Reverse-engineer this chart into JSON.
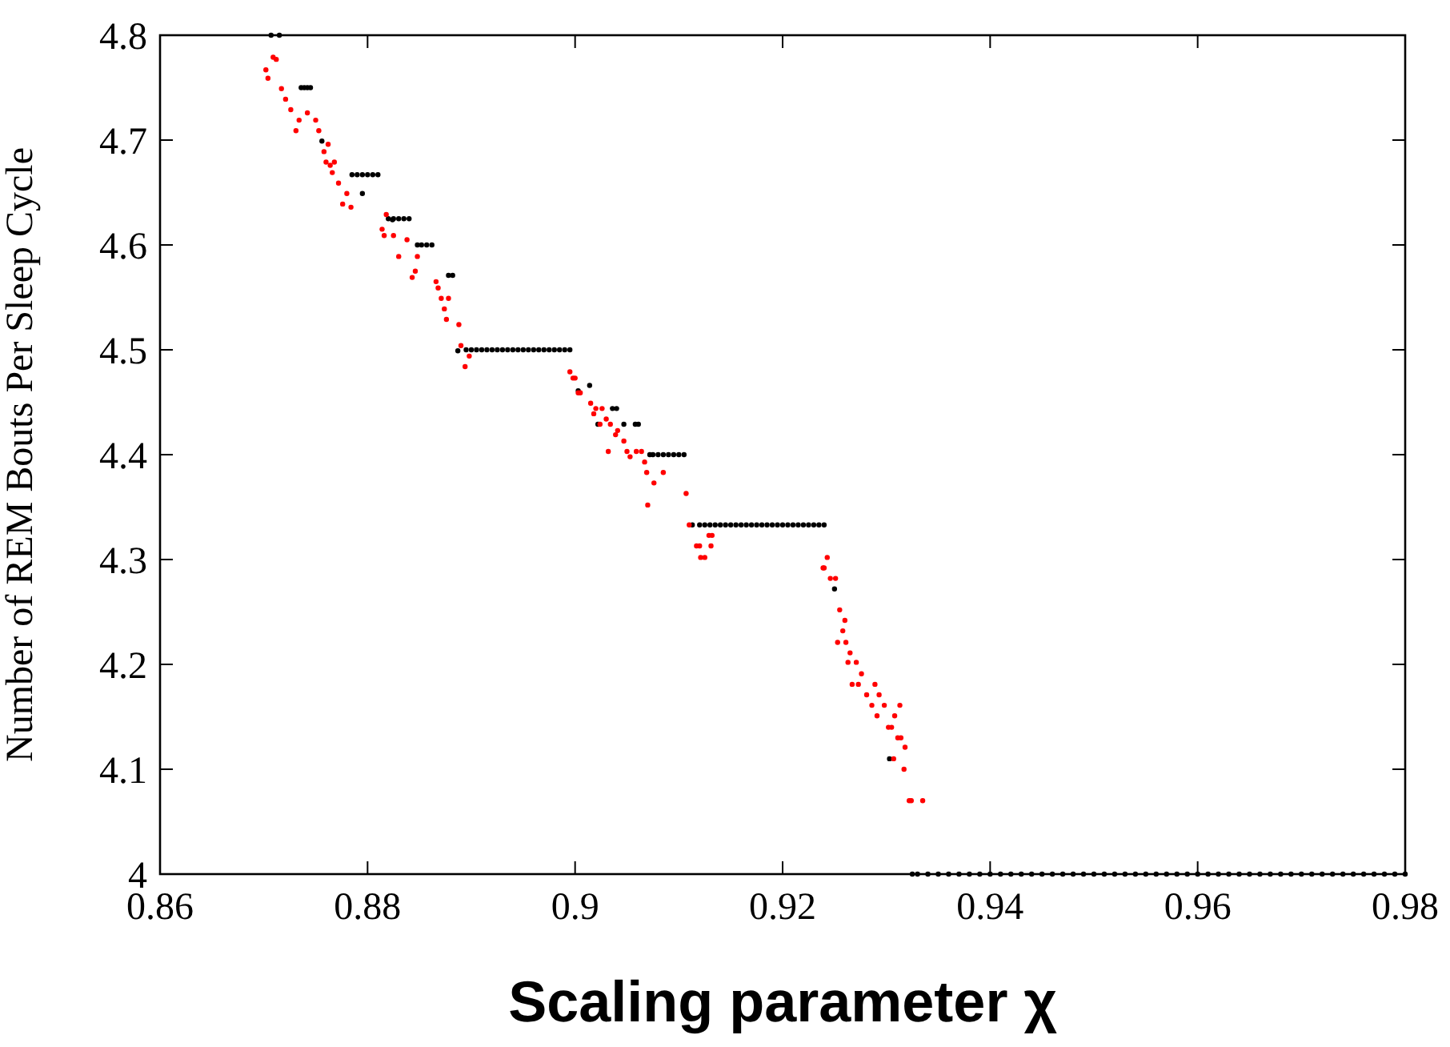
{
  "chart_data": {
    "type": "scatter",
    "xlabel": "Scaling parameter χ",
    "ylabel": "Number of REM Bouts Per Sleep Cycle",
    "xlim": [
      0.86,
      0.98
    ],
    "xticks": [
      0.86,
      0.88,
      0.9,
      0.92,
      0.94,
      0.96,
      0.98
    ],
    "ylim": [
      4,
      4.8
    ],
    "yticks": [
      4,
      4.1,
      4.2,
      4.3,
      4.4,
      4.5,
      4.6,
      4.7,
      4.8
    ],
    "grid": false,
    "series": [
      {
        "color": "#000000",
        "x": [
          0.8707,
          0.8715,
          0.8736,
          0.8739,
          0.8742,
          0.8745,
          0.8785,
          0.879,
          0.8795,
          0.88,
          0.8805,
          0.881,
          0.882,
          0.8825,
          0.883,
          0.8835,
          0.884,
          0.8848,
          0.8852,
          0.8857,
          0.8862,
          0.8878,
          0.8882,
          0.8895,
          0.89,
          0.8905,
          0.891,
          0.8915,
          0.892,
          0.8925,
          0.893,
          0.8935,
          0.894,
          0.8945,
          0.895,
          0.8955,
          0.896,
          0.8965,
          0.897,
          0.8975,
          0.898,
          0.8985,
          0.899,
          0.8995,
          0.8756,
          0.8795,
          0.8824,
          0.8887,
          0.9003,
          0.9014,
          0.9036,
          0.904,
          0.9022,
          0.9047,
          0.9058,
          0.9061,
          0.9072,
          0.9075,
          0.908,
          0.9085,
          0.909,
          0.9095,
          0.91,
          0.9105,
          0.9113,
          0.912,
          0.9125,
          0.913,
          0.9135,
          0.914,
          0.9145,
          0.915,
          0.9155,
          0.916,
          0.9165,
          0.917,
          0.9175,
          0.918,
          0.9185,
          0.919,
          0.9195,
          0.92,
          0.9205,
          0.921,
          0.9215,
          0.922,
          0.9225,
          0.923,
          0.9235,
          0.924,
          0.925,
          0.9303,
          0.9325,
          0.933,
          0.934,
          0.935,
          0.936,
          0.937,
          0.938,
          0.939,
          0.94,
          0.941,
          0.942,
          0.943,
          0.944,
          0.945,
          0.946,
          0.947,
          0.948,
          0.949,
          0.95,
          0.951,
          0.952,
          0.953,
          0.954,
          0.955,
          0.956,
          0.957,
          0.958,
          0.959,
          0.96,
          0.961,
          0.962,
          0.963,
          0.964,
          0.965,
          0.966,
          0.967,
          0.968,
          0.969,
          0.97,
          0.971,
          0.972,
          0.973,
          0.974,
          0.975,
          0.976,
          0.977,
          0.978,
          0.979,
          0.98
        ],
        "values": [
          4.8,
          4.8,
          4.75,
          4.75,
          4.75,
          4.75,
          4.667,
          4.667,
          4.667,
          4.667,
          4.667,
          4.667,
          4.625,
          4.625,
          4.625,
          4.625,
          4.625,
          4.6,
          4.6,
          4.6,
          4.6,
          4.571,
          4.571,
          4.5,
          4.5,
          4.5,
          4.5,
          4.5,
          4.5,
          4.5,
          4.5,
          4.5,
          4.5,
          4.5,
          4.5,
          4.5,
          4.5,
          4.5,
          4.5,
          4.5,
          4.5,
          4.5,
          4.5,
          4.5,
          4.699,
          4.649,
          4.624,
          4.499,
          4.461,
          4.466,
          4.444,
          4.444,
          4.429,
          4.429,
          4.429,
          4.429,
          4.4,
          4.4,
          4.4,
          4.4,
          4.4,
          4.4,
          4.4,
          4.4,
          4.333,
          4.333,
          4.333,
          4.333,
          4.333,
          4.333,
          4.333,
          4.333,
          4.333,
          4.333,
          4.333,
          4.333,
          4.333,
          4.333,
          4.333,
          4.333,
          4.333,
          4.333,
          4.333,
          4.333,
          4.333,
          4.333,
          4.333,
          4.333,
          4.333,
          4.333,
          4.272,
          4.11,
          4,
          4,
          4,
          4,
          4,
          4,
          4,
          4,
          4,
          4,
          4,
          4,
          4,
          4,
          4,
          4,
          4,
          4,
          4,
          4,
          4,
          4,
          4,
          4,
          4,
          4,
          4,
          4,
          4,
          4,
          4,
          4,
          4,
          4,
          4,
          4,
          4,
          4,
          4,
          4,
          4,
          4,
          4,
          4,
          4,
          4,
          4,
          4,
          4
        ]
      },
      {
        "color": "#ff0000",
        "x": [
          0.8709,
          0.8712,
          0.8702,
          0.8704,
          0.8717,
          0.8721,
          0.8726,
          0.8734,
          0.8731,
          0.8742,
          0.875,
          0.8753,
          0.8762,
          0.8758,
          0.876,
          0.8764,
          0.8768,
          0.8766,
          0.8772,
          0.878,
          0.8776,
          0.8784,
          0.8818,
          0.8814,
          0.8816,
          0.8825,
          0.8838,
          0.883,
          0.8848,
          0.8843,
          0.8846,
          0.8866,
          0.8868,
          0.8871,
          0.8878,
          0.8874,
          0.8876,
          0.8888,
          0.889,
          0.8898,
          0.8894,
          0.8995,
          0.8998,
          0.9,
          0.9003,
          0.9005,
          0.9015,
          0.9018,
          0.902,
          0.9026,
          0.903,
          0.9034,
          0.9024,
          0.9041,
          0.9039,
          0.9047,
          0.9032,
          0.905,
          0.9053,
          0.9059,
          0.9064,
          0.9067,
          0.9069,
          0.9076,
          0.9085,
          0.907,
          0.9107,
          0.911,
          0.9117,
          0.912,
          0.9121,
          0.9125,
          0.9129,
          0.9132,
          0.9131,
          0.924,
          0.9243,
          0.9239,
          0.9246,
          0.9251,
          0.9255,
          0.926,
          0.9258,
          0.9253,
          0.9261,
          0.9265,
          0.9263,
          0.9271,
          0.9276,
          0.9267,
          0.9273,
          0.9289,
          0.9281,
          0.9293,
          0.9286,
          0.9298,
          0.9313,
          0.9291,
          0.9308,
          0.9302,
          0.9305,
          0.9311,
          0.9314,
          0.9318,
          0.9307,
          0.9317,
          0.9322,
          0.9324,
          0.9335
        ],
        "values": [
          4.779,
          4.777,
          4.767,
          4.759,
          4.749,
          4.739,
          4.729,
          4.719,
          4.709,
          4.726,
          4.719,
          4.709,
          4.696,
          4.689,
          4.679,
          4.676,
          4.679,
          4.669,
          4.659,
          4.649,
          4.639,
          4.636,
          4.629,
          4.615,
          4.609,
          4.609,
          4.605,
          4.589,
          4.589,
          4.569,
          4.575,
          4.565,
          4.559,
          4.549,
          4.549,
          4.539,
          4.529,
          4.524,
          4.504,
          4.494,
          4.484,
          4.479,
          4.473,
          4.473,
          4.459,
          4.459,
          4.449,
          4.439,
          4.444,
          4.444,
          4.434,
          4.429,
          4.429,
          4.423,
          4.419,
          4.413,
          4.403,
          4.403,
          4.398,
          4.403,
          4.403,
          4.393,
          4.383,
          4.373,
          4.383,
          4.352,
          4.363,
          4.333,
          4.313,
          4.313,
          4.302,
          4.302,
          4.323,
          4.323,
          4.313,
          4.292,
          4.302,
          4.292,
          4.282,
          4.282,
          4.252,
          4.242,
          4.232,
          4.221,
          4.221,
          4.211,
          4.202,
          4.202,
          4.191,
          4.181,
          4.181,
          4.181,
          4.171,
          4.171,
          4.161,
          4.161,
          4.161,
          4.151,
          4.151,
          4.14,
          4.14,
          4.13,
          4.13,
          4.121,
          4.11,
          4.1,
          4.07,
          4.07,
          4.07
        ]
      }
    ]
  }
}
